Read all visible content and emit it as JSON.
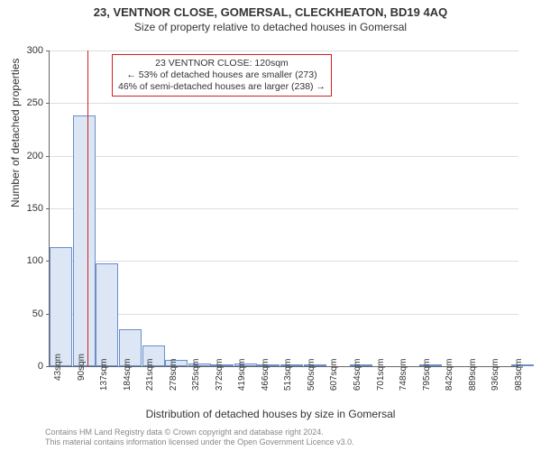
{
  "title": "23, VENTNOR CLOSE, GOMERSAL, CLECKHEATON, BD19 4AQ",
  "subtitle": "Size of property relative to detached houses in Gomersal",
  "ylabel": "Number of detached properties",
  "xlabel": "Distribution of detached houses by size in Gomersal",
  "annotation": {
    "line1": "23 VENTNOR CLOSE: 120sqm",
    "line2": "← 53% of detached houses are smaller (273)",
    "line3": "46% of semi-detached houses are larger (238) →"
  },
  "footer": {
    "line1": "Contains HM Land Registry data © Crown copyright and database right 2024.",
    "line2": "This material contains information licensed under the Open Government Licence v3.0."
  },
  "chart": {
    "type": "histogram",
    "ylim": [
      0,
      300
    ],
    "ytick_step": 50,
    "xlim": [
      43,
      1000
    ],
    "xtick_start": 43,
    "xtick_step": 47,
    "xtick_suffix": "sqm",
    "bar_fill": "#dce6f4",
    "bar_stroke": "#6a8ec9",
    "grid_color": "#dddddd",
    "axis_color": "#666666",
    "marker_value": 120,
    "marker_color": "#d02020",
    "background": "#ffffff",
    "bin_width": 47,
    "bars": [
      {
        "x": 43,
        "y": 113
      },
      {
        "x": 90,
        "y": 238
      },
      {
        "x": 137,
        "y": 98
      },
      {
        "x": 184,
        "y": 35
      },
      {
        "x": 232,
        "y": 20
      },
      {
        "x": 279,
        "y": 6
      },
      {
        "x": 326,
        "y": 3
      },
      {
        "x": 373,
        "y": 2
      },
      {
        "x": 420,
        "y": 3
      },
      {
        "x": 467,
        "y": 1
      },
      {
        "x": 515,
        "y": 2
      },
      {
        "x": 562,
        "y": 2
      },
      {
        "x": 609,
        "y": 0
      },
      {
        "x": 656,
        "y": 1
      },
      {
        "x": 703,
        "y": 0
      },
      {
        "x": 750,
        "y": 0
      },
      {
        "x": 797,
        "y": 1
      },
      {
        "x": 845,
        "y": 0
      },
      {
        "x": 892,
        "y": 0
      },
      {
        "x": 939,
        "y": 0
      },
      {
        "x": 986,
        "y": 1
      }
    ]
  }
}
